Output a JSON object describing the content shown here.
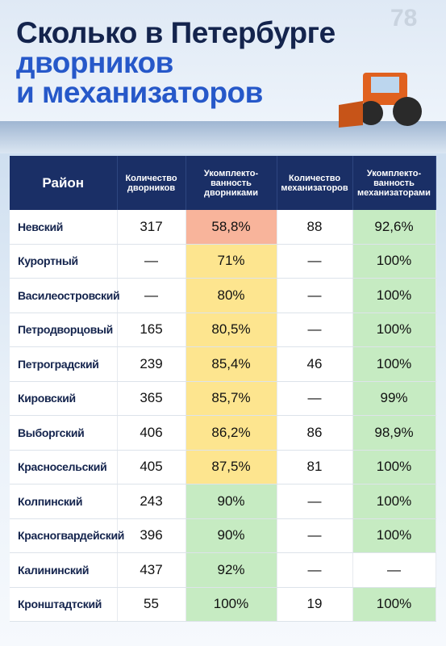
{
  "header": {
    "title_lines": [
      "Сколько в Петербурге",
      "дворников",
      "и механизаторов"
    ],
    "logo": "78"
  },
  "table": {
    "columns": [
      "Район",
      "Количество дворников",
      "Укомплекто-\nванность\nдворниками",
      "Количество механизаторов",
      "Укомплекто-\nванность\nмеханизаторами"
    ],
    "rows": [
      [
        "Невский",
        "317",
        "58,8%",
        "88",
        "92,6%"
      ],
      [
        "Курортный",
        "—",
        "71%",
        "—",
        "100%"
      ],
      [
        "Василеостровский",
        "—",
        "80%",
        "—",
        "100%"
      ],
      [
        "Петродворцовый",
        "165",
        "80,5%",
        "—",
        "100%"
      ],
      [
        "Петроградский",
        "239",
        "85,4%",
        "46",
        "100%"
      ],
      [
        "Кировский",
        "365",
        "85,7%",
        "—",
        "99%"
      ],
      [
        "Выборгский",
        "406",
        "86,2%",
        "86",
        "98,9%"
      ],
      [
        "Красносельский",
        "405",
        "87,5%",
        "81",
        "100%"
      ],
      [
        "Колпинский",
        "243",
        "90%",
        "—",
        "100%"
      ],
      [
        "Красногвардейский",
        "396",
        "90%",
        "—",
        "100%"
      ],
      [
        "Калининский",
        "437",
        "92%",
        "—",
        "—"
      ],
      [
        "Кронштадтский",
        "55",
        "100%",
        "19",
        "100%"
      ]
    ],
    "fills_dvorniki": [
      "#f8b49b",
      "#fde58f",
      "#fde58f",
      "#fde58f",
      "#fde58f",
      "#fde58f",
      "#fde58f",
      "#fde58f",
      "#c6ebc2",
      "#c6ebc2",
      "#c6ebc2",
      "#c6ebc2"
    ],
    "fills_mekhanizatory": [
      "#c6ebc2",
      "#c6ebc2",
      "#c6ebc2",
      "#c6ebc2",
      "#c6ebc2",
      "#c6ebc2",
      "#c6ebc2",
      "#c6ebc2",
      "#c6ebc2",
      "#c6ebc2",
      "#ffffff",
      "#c6ebc2"
    ]
  }
}
